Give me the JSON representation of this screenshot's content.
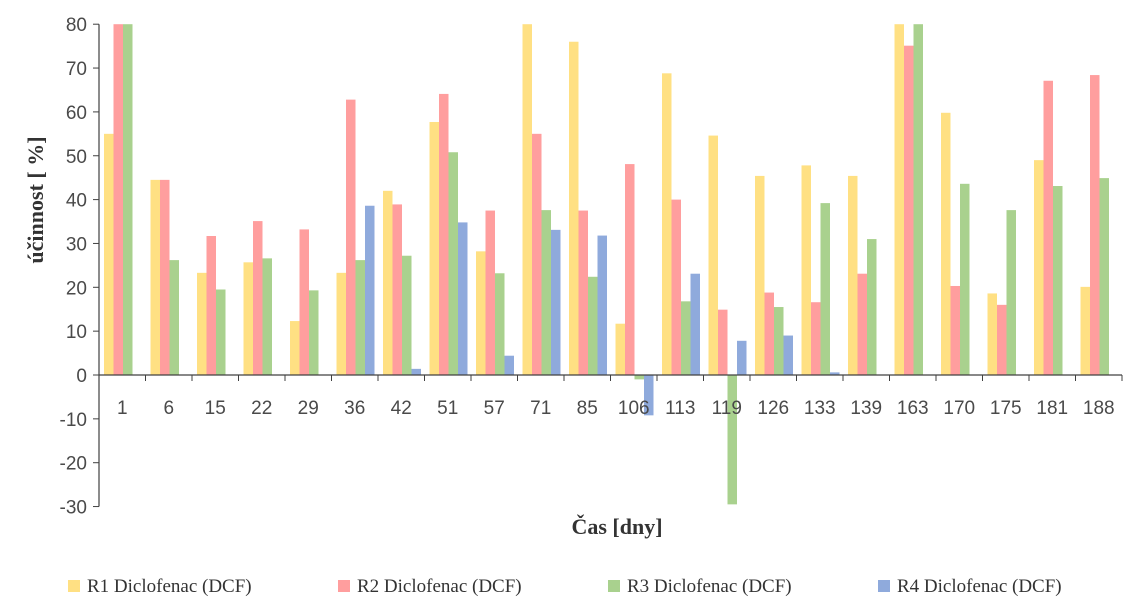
{
  "chart_data": {
    "type": "bar",
    "xlabel": "Čas [dny]",
    "ylabel": "účinnost [ %]",
    "ylim": [
      -30,
      80
    ],
    "yticks": [
      80,
      70,
      60,
      50,
      40,
      30,
      20,
      10,
      0,
      -10,
      -20,
      -30
    ],
    "grid": false,
    "legend_position": "bottom",
    "categories": [
      "1",
      "6",
      "15",
      "22",
      "29",
      "36",
      "42",
      "51",
      "57",
      "71",
      "85",
      "106",
      "113",
      "119",
      "126",
      "133",
      "139",
      "163",
      "170",
      "175",
      "181",
      "188"
    ],
    "series": [
      {
        "name": "R1 Diclofenac (DCF)",
        "color": "#FFE083",
        "values": [
          55,
          44.5,
          23.3,
          25.7,
          12.3,
          23.3,
          42,
          57.7,
          28.2,
          80,
          76,
          11.7,
          68.8,
          54.6,
          45.4,
          47.8,
          45.4,
          80,
          59.8,
          18.6,
          49,
          20.1
        ]
      },
      {
        "name": "R2 Diclofenac (DCF)",
        "color": "#FF9E9E",
        "values": [
          80,
          44.5,
          31.7,
          35.1,
          33.2,
          62.8,
          38.9,
          64.1,
          37.5,
          55,
          37.5,
          48.1,
          40,
          14.9,
          18.8,
          16.6,
          23.1,
          75.1,
          20.3,
          16,
          67.1,
          68.4
        ]
      },
      {
        "name": "R3 Diclofenac (DCF)",
        "color": "#A9D18E",
        "values": [
          80,
          26.2,
          19.5,
          26.6,
          19.3,
          26.2,
          27.2,
          50.8,
          23.2,
          37.6,
          22.4,
          -1,
          16.8,
          -29.5,
          15.5,
          39.2,
          31,
          80,
          43.6,
          37.6,
          43.1,
          44.9
        ]
      },
      {
        "name": "R4 Diclofenac (DCF)",
        "color": "#8FAADC",
        "values": [
          0,
          0,
          0,
          0,
          0,
          38.6,
          1.4,
          34.8,
          4.4,
          33.1,
          31.8,
          -9.2,
          23.1,
          7.8,
          9,
          0.6,
          0,
          0,
          0,
          0,
          0,
          0
        ]
      }
    ]
  }
}
